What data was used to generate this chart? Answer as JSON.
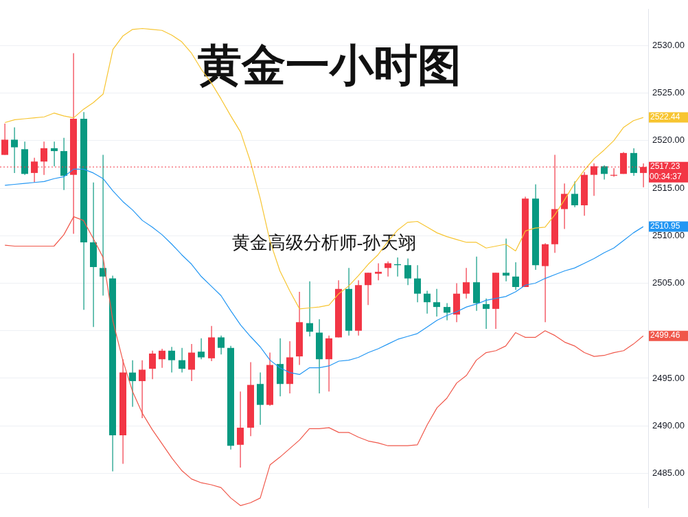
{
  "chart_data": {
    "type": "candlestick",
    "title": "黄金一小时图",
    "subtitle": "黄金高级分析师-孙天翊",
    "categories": [
      null,
      null,
      null,
      null,
      null,
      null,
      null,
      null,
      null,
      null,
      null,
      null,
      null,
      null,
      null,
      null,
      null,
      null,
      null,
      null,
      null,
      null,
      null,
      null,
      null,
      null,
      null,
      null,
      null,
      null,
      null,
      null,
      null,
      null,
      null,
      null,
      null,
      null,
      null,
      null,
      null,
      null,
      null,
      null,
      null,
      null,
      null,
      null,
      null,
      null,
      null,
      null,
      null,
      null,
      null,
      null,
      null,
      null,
      null,
      null,
      null,
      null,
      null,
      null,
      null,
      null
    ],
    "ohlc": [
      [
        2518.5,
        2521.8,
        2518.5,
        2520.1
      ],
      [
        2520.1,
        2521.4,
        2516.6,
        2519.3
      ],
      [
        2519.1,
        2519.9,
        2516.4,
        2516.5
      ],
      [
        2516.6,
        2518.2,
        2515.6,
        2517.8
      ],
      [
        2517.8,
        2519.9,
        2516.4,
        2519.2
      ],
      [
        2519.2,
        2519.9,
        2517.3,
        2518.9
      ],
      [
        2518.9,
        2520.3,
        2514.8,
        2516.3
      ],
      [
        2516.4,
        2529.2,
        2510.2,
        2522.3
      ],
      [
        2522.3,
        2523.0,
        2502.2,
        2509.3
      ],
      [
        2509.3,
        2515.6,
        2500.4,
        2506.7
      ],
      [
        2506.6,
        2518.5,
        2503.7,
        2505.7
      ],
      [
        2505.5,
        2505.8,
        2485.2,
        2489.0
      ],
      [
        2489.0,
        2497.0,
        2486.0,
        2495.6
      ],
      [
        2495.6,
        2496.9,
        2492.0,
        2494.7
      ],
      [
        2494.7,
        2496.9,
        2490.8,
        2495.9
      ],
      [
        2496.0,
        2497.9,
        2494.9,
        2497.6
      ],
      [
        2497.0,
        2498.1,
        2496.1,
        2497.9
      ],
      [
        2497.9,
        2498.3,
        2495.6,
        2496.9
      ],
      [
        2496.9,
        2498.2,
        2495.6,
        2496.0
      ],
      [
        2495.9,
        2498.6,
        2494.7,
        2497.7
      ],
      [
        2497.8,
        2499.2,
        2497.0,
        2497.2
      ],
      [
        2497.1,
        2500.5,
        2496.8,
        2499.3
      ],
      [
        2499.3,
        2499.5,
        2497.5,
        2498.2
      ],
      [
        2498.2,
        2498.4,
        2487.5,
        2487.9
      ],
      [
        2488.0,
        2493.6,
        2485.6,
        2489.8
      ],
      [
        2489.8,
        2496.7,
        2488.9,
        2494.3
      ],
      [
        2494.4,
        2495.6,
        2490.1,
        2492.2
      ],
      [
        2492.2,
        2497.7,
        2492.1,
        2496.4
      ],
      [
        2496.5,
        2499.2,
        2493.1,
        2494.4
      ],
      [
        2494.4,
        2498.9,
        2493.4,
        2497.2
      ],
      [
        2497.3,
        2504.1,
        2496.4,
        2500.9
      ],
      [
        2500.8,
        2505.2,
        2499.4,
        2499.9
      ],
      [
        2499.8,
        2501.2,
        2493.4,
        2497.0
      ],
      [
        2497.0,
        2499.5,
        2493.6,
        2499.2
      ],
      [
        2499.3,
        2505.3,
        2499.3,
        2504.4
      ],
      [
        2504.4,
        2506.6,
        2499.5,
        2500.0
      ],
      [
        2500.0,
        2505.3,
        2499.5,
        2504.8
      ],
      [
        2504.8,
        2506.1,
        2502.7,
        2506.1
      ],
      [
        2506.0,
        2507.1,
        2505.3,
        2506.2
      ],
      [
        2506.6,
        2507.3,
        2505.7,
        2507.1
      ],
      [
        2507.0,
        2507.7,
        2505.7,
        2506.9
      ],
      [
        2506.9,
        2507.6,
        2504.8,
        2505.5
      ],
      [
        2505.5,
        2506.9,
        2503.0,
        2503.9
      ],
      [
        2503.9,
        2504.2,
        2501.8,
        2503.0
      ],
      [
        2503.0,
        2504.4,
        2501.5,
        2502.5
      ],
      [
        2502.5,
        2502.9,
        2501.1,
        2501.9
      ],
      [
        2501.7,
        2505.0,
        2500.9,
        2503.9
      ],
      [
        2503.9,
        2506.6,
        2503.4,
        2505.1
      ],
      [
        2505.1,
        2507.8,
        2502.1,
        2502.9
      ],
      [
        2502.8,
        2503.4,
        2500.2,
        2502.3
      ],
      [
        2502.3,
        2506.1,
        2500.2,
        2506.1
      ],
      [
        2506.1,
        2509.7,
        2505.2,
        2505.8
      ],
      [
        2505.7,
        2507.2,
        2504.3,
        2504.6
      ],
      [
        2504.6,
        2514.1,
        2504.6,
        2513.9
      ],
      [
        2513.9,
        2515.4,
        2506.4,
        2506.9
      ],
      [
        2506.8,
        2509.2,
        2500.9,
        2509.1
      ],
      [
        2509.1,
        2518.5,
        2508.2,
        2512.8
      ],
      [
        2512.8,
        2515.5,
        2510.7,
        2514.4
      ],
      [
        2514.4,
        2515.7,
        2513.0,
        2513.2
      ],
      [
        2513.2,
        2516.7,
        2512.1,
        2516.4
      ],
      [
        2516.4,
        2517.6,
        2514.2,
        2517.3
      ],
      [
        2517.3,
        2517.4,
        2515.9,
        2516.5
      ],
      [
        2516.4,
        2517.1,
        2516.2,
        2516.4
      ],
      [
        2516.5,
        2518.8,
        2516.5,
        2518.7
      ],
      [
        2518.7,
        2519.2,
        2516.3,
        2516.6
      ],
      [
        2516.6,
        2517.6,
        2515.1,
        2517.23
      ]
    ],
    "colors": [
      "#f23645",
      "#089981",
      "#089981",
      "#f23645",
      "#f23645",
      "#089981",
      "#089981",
      "#f23645",
      "#089981",
      "#089981",
      "#089981",
      "#089981",
      "#f23645",
      "#089981",
      "#f23645",
      "#f23645",
      "#f23645",
      "#089981",
      "#089981",
      "#f23645",
      "#089981",
      "#f23645",
      "#089981",
      "#089981",
      "#f23645",
      "#f23645",
      "#089981",
      "#f23645",
      "#089981",
      "#f23645",
      "#f23645",
      "#089981",
      "#089981",
      "#f23645",
      "#f23645",
      "#089981",
      "#f23645",
      "#f23645",
      "#f23645",
      "#f23645",
      "#089981",
      "#089981",
      "#089981",
      "#089981",
      "#089981",
      "#089981",
      "#f23645",
      "#f23645",
      "#089981",
      "#089981",
      "#f23645",
      "#089981",
      "#089981",
      "#f23645",
      "#089981",
      "#f23645",
      "#f23645",
      "#f23645",
      "#089981",
      "#f23645",
      "#f23645",
      "#089981",
      "#f23645",
      "#f23645",
      "#089981",
      "#f23645"
    ],
    "series": [
      {
        "type": "line",
        "color": "#f7c531",
        "value_labels": [
          null,
          null,
          null,
          null,
          null,
          null,
          null,
          null,
          null,
          null,
          null,
          null,
          null,
          null,
          null,
          null,
          null,
          null,
          null,
          null,
          null,
          null,
          null,
          null,
          null,
          null,
          null,
          null,
          null,
          null,
          null,
          null,
          null,
          null,
          null,
          null,
          null,
          null,
          null,
          null,
          null,
          null,
          null,
          null,
          null,
          null,
          null,
          null,
          null,
          null,
          null,
          null,
          null,
          null,
          null,
          null,
          null,
          null,
          null,
          null,
          null,
          null,
          null,
          null,
          null,
          "2522.44"
        ],
        "values": [
          2521.9,
          2522.2,
          2522.3,
          2522.4,
          2522.5,
          2522.9,
          2522.6,
          2522.4,
          2523.3,
          2524.0,
          2524.9,
          2529.6,
          2531.0,
          2531.7,
          2531.8,
          2531.7,
          2531.6,
          2531.1,
          2530.4,
          2529.2,
          2527.5,
          2526.1,
          2524.4,
          2522.6,
          2520.9,
          2517.8,
          2513.9,
          2509.4,
          2506.3,
          2504.2,
          2502.3,
          2502.4,
          2502.5,
          2502.7,
          2503.9,
          2504.7,
          2505.8,
          2507.0,
          2508.0,
          2509.4,
          2510.6,
          2511.4,
          2511.5,
          2510.9,
          2510.3,
          2509.9,
          2509.6,
          2509.3,
          2509.3,
          2508.7,
          2508.9,
          2509.1,
          2508.4,
          2510.5,
          2510.8,
          2510.9,
          2512.2,
          2513.8,
          2515.5,
          2516.9,
          2518.1,
          2519.0,
          2520.0,
          2521.4,
          2522.1,
          2522.44
        ]
      },
      {
        "type": "line",
        "color": "#2196f3",
        "value_labels": [
          null,
          null,
          null,
          null,
          null,
          null,
          null,
          null,
          null,
          null,
          null,
          null,
          null,
          null,
          null,
          null,
          null,
          null,
          null,
          null,
          null,
          null,
          null,
          null,
          null,
          null,
          null,
          null,
          null,
          null,
          null,
          null,
          null,
          null,
          null,
          null,
          null,
          null,
          null,
          null,
          null,
          null,
          null,
          null,
          null,
          null,
          null,
          null,
          null,
          null,
          null,
          null,
          null,
          null,
          null,
          null,
          null,
          null,
          null,
          null,
          null,
          null,
          null,
          null,
          null,
          "2510.95"
        ],
        "values": [
          2515.3,
          2515.4,
          2515.5,
          2515.6,
          2515.7,
          2516.0,
          2516.2,
          2517.0,
          2517.0,
          2516.6,
          2516.0,
          2514.7,
          2513.6,
          2512.7,
          2511.6,
          2510.9,
          2510.1,
          2509.1,
          2508.0,
          2507.0,
          2505.7,
          2504.7,
          2503.7,
          2502.1,
          2500.6,
          2499.4,
          2498.3,
          2496.9,
          2496.1,
          2495.6,
          2495.4,
          2496.1,
          2496.1,
          2496.3,
          2496.8,
          2496.9,
          2497.2,
          2497.7,
          2498.1,
          2498.6,
          2499.1,
          2499.4,
          2499.7,
          2500.4,
          2501.1,
          2501.6,
          2502.0,
          2502.5,
          2502.8,
          2503.2,
          2503.4,
          2503.6,
          2504.1,
          2504.8,
          2505.0,
          2505.5,
          2505.9,
          2506.3,
          2506.6,
          2507.1,
          2507.6,
          2508.2,
          2508.7,
          2509.5,
          2510.3,
          2510.95
        ]
      },
      {
        "type": "line",
        "color": "#f0574a",
        "value_labels": [
          null,
          null,
          null,
          null,
          null,
          null,
          null,
          null,
          null,
          null,
          null,
          null,
          null,
          null,
          null,
          null,
          null,
          null,
          null,
          null,
          null,
          null,
          null,
          null,
          null,
          null,
          null,
          null,
          null,
          null,
          null,
          null,
          null,
          null,
          null,
          null,
          null,
          null,
          null,
          null,
          null,
          null,
          null,
          null,
          null,
          null,
          null,
          null,
          null,
          null,
          null,
          null,
          null,
          null,
          null,
          null,
          null,
          null,
          null,
          null,
          null,
          null,
          null,
          null,
          null,
          "2499.46"
        ],
        "values": [
          2509.0,
          2508.9,
          2508.9,
          2508.9,
          2508.9,
          2508.9,
          2510.1,
          2512.0,
          2511.6,
          2509.7,
          2507.7,
          2501.0,
          2496.9,
          2493.6,
          2491.3,
          2489.6,
          2488.1,
          2486.6,
          2485.3,
          2484.4,
          2484.0,
          2483.8,
          2483.5,
          2482.4,
          2481.6,
          2481.9,
          2482.4,
          2485.9,
          2486.7,
          2487.6,
          2488.5,
          2489.7,
          2489.7,
          2489.8,
          2489.3,
          2489.3,
          2488.8,
          2488.4,
          2488.2,
          2487.9,
          2487.9,
          2487.9,
          2488.0,
          2490.1,
          2491.9,
          2492.9,
          2494.5,
          2495.3,
          2496.9,
          2497.7,
          2497.9,
          2498.4,
          2499.8,
          2499.3,
          2499.3,
          2500.0,
          2499.5,
          2498.8,
          2498.4,
          2497.7,
          2497.3,
          2497.4,
          2497.7,
          2497.9,
          2498.6,
          2499.46
        ]
      }
    ],
    "ylim": [
      2481.4,
      2533.8
    ],
    "yticks": [
      {
        "value": 2485,
        "label": "2485.00"
      },
      {
        "value": 2490,
        "label": "2490.00"
      },
      {
        "value": 2495,
        "label": "2495.00"
      },
      {
        "value": 2500,
        "label": null
      },
      {
        "value": 2505,
        "label": "2505.00"
      },
      {
        "value": 2510,
        "label": "2510.00"
      },
      {
        "value": 2515,
        "label": "2515.00"
      },
      {
        "value": 2520,
        "label": "2520.00"
      },
      {
        "value": 2525,
        "label": "2525.00"
      },
      {
        "value": 2530,
        "label": "2530.00"
      }
    ],
    "ref_lines": [
      {
        "axis": "y",
        "value": 2517.23,
        "label": "2517.23",
        "color": "#f23645",
        "line_style": "dotted"
      }
    ],
    "annotations": [
      "00:34:37"
    ],
    "grid": "y",
    "marker": "none",
    "line_style": "solid",
    "tick_labels": "y"
  }
}
